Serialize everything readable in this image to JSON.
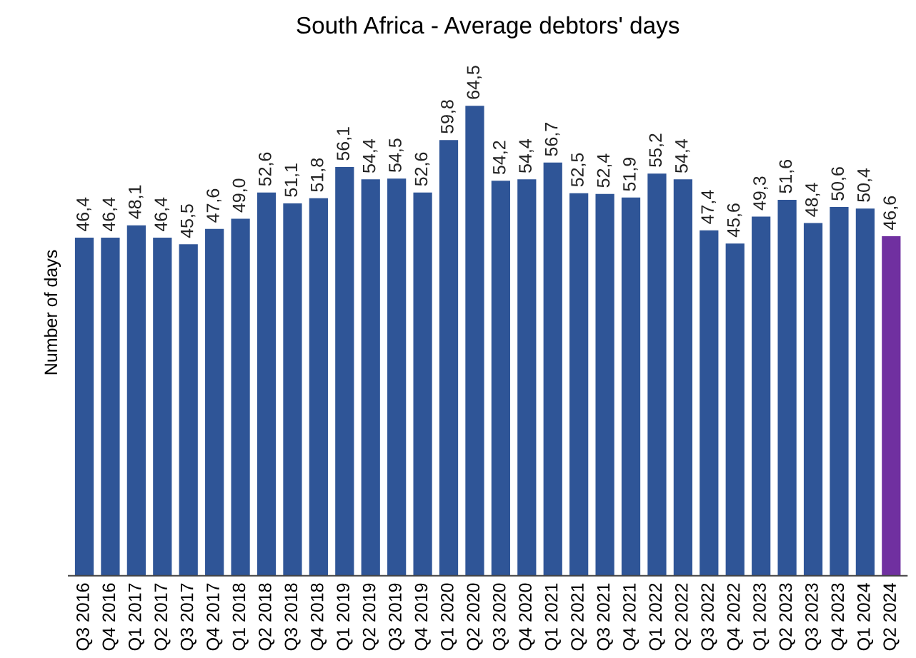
{
  "chart_data": {
    "type": "bar",
    "title": "South Africa - Average debtors' days",
    "ylabel": "Number of days",
    "categories": [
      "Q3 2016",
      "Q4 2016",
      "Q1 2017",
      "Q2 2017",
      "Q3 2017",
      "Q4 2017",
      "Q1 2018",
      "Q2 2018",
      "Q3 2018",
      "Q4 2018",
      "Q1 2019",
      "Q2 2019",
      "Q3 2019",
      "Q4 2019",
      "Q1 2020",
      "Q2 2020",
      "Q3 2020",
      "Q4 2020",
      "Q1 2021",
      "Q2 2021",
      "Q3 2021",
      "Q4 2021",
      "Q1 2022",
      "Q2 2022",
      "Q3 2022",
      "Q4 2022",
      "Q1 2023",
      "Q2 2023",
      "Q3 2023",
      "Q4 2023",
      "Q1 2024",
      "Q2 2024"
    ],
    "values": [
      46.4,
      46.4,
      48.1,
      46.4,
      45.5,
      47.6,
      49.0,
      52.6,
      51.1,
      51.8,
      56.1,
      54.4,
      54.5,
      52.6,
      59.8,
      64.5,
      54.2,
      54.4,
      56.7,
      52.5,
      52.4,
      51.9,
      55.2,
      54.4,
      47.4,
      45.6,
      49.3,
      51.6,
      48.4,
      50.6,
      50.4,
      46.6
    ],
    "value_labels": [
      "46,4",
      "46,4",
      "48,1",
      "46,4",
      "45,5",
      "47,6",
      "49,0",
      "52,6",
      "51,1",
      "51,8",
      "56,1",
      "54,4",
      "54,5",
      "52,6",
      "59,8",
      "64,5",
      "54,2",
      "54,4",
      "56,7",
      "52,5",
      "52,4",
      "51,9",
      "55,2",
      "54,4",
      "47,4",
      "45,6",
      "49,3",
      "51,6",
      "48,4",
      "50,6",
      "50,4",
      "46,6"
    ],
    "colors": [
      "#2f5597",
      "#2f5597",
      "#2f5597",
      "#2f5597",
      "#2f5597",
      "#2f5597",
      "#2f5597",
      "#2f5597",
      "#2f5597",
      "#2f5597",
      "#2f5597",
      "#2f5597",
      "#2f5597",
      "#2f5597",
      "#2f5597",
      "#2f5597",
      "#2f5597",
      "#2f5597",
      "#2f5597",
      "#2f5597",
      "#2f5597",
      "#2f5597",
      "#2f5597",
      "#2f5597",
      "#2f5597",
      "#2f5597",
      "#2f5597",
      "#2f5597",
      "#2f5597",
      "#2f5597",
      "#2f5597",
      "#7030a0"
    ],
    "grid": false,
    "legend": false,
    "tick_labels": "x"
  }
}
